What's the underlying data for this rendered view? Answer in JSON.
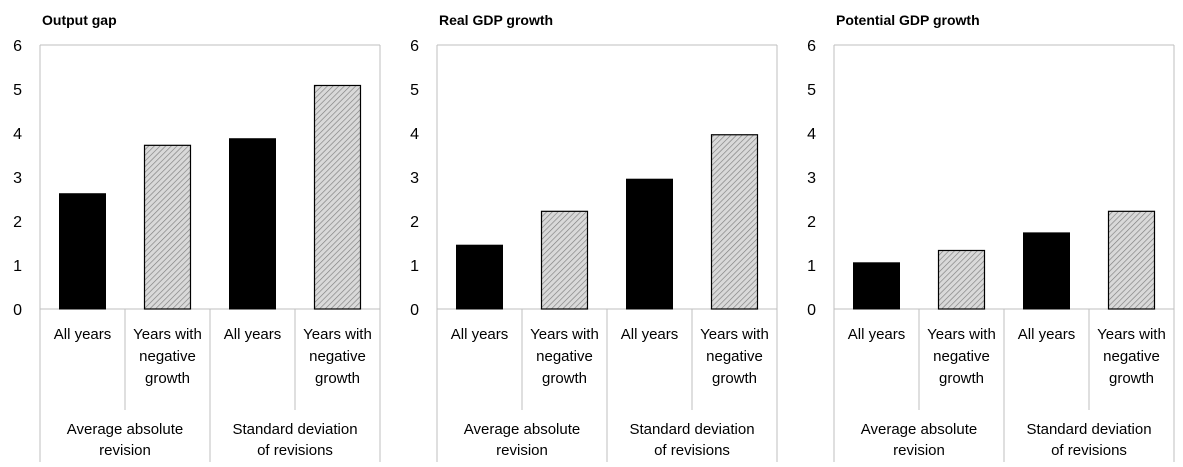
{
  "colors": {
    "solid": "#000000",
    "hatch_fill": "#d9d9d9",
    "hatch_line": "#7f7f7f",
    "axis": "#bfbfbf"
  },
  "chart_data": [
    {
      "type": "bar",
      "title": "Output gap",
      "ylim": [
        0,
        6
      ],
      "yticks": [
        "0",
        "1",
        "2",
        "3",
        "4",
        "5",
        "6"
      ],
      "categories": [
        "All years",
        "Years with negative growth",
        "All years",
        "Years with negative growth"
      ],
      "category_lines": [
        [
          "All years"
        ],
        [
          "Years with",
          "negative",
          "growth"
        ],
        [
          "All years"
        ],
        [
          "Years with",
          "negative",
          "growth"
        ]
      ],
      "groups": [
        {
          "label": "Average absolute revision",
          "lines": [
            "Average absolute",
            "revision"
          ]
        },
        {
          "label": "Standard deviation of revisions",
          "lines": [
            "Standard deviation",
            "of revisions"
          ]
        }
      ],
      "styles": [
        "solid",
        "hatched",
        "solid",
        "hatched"
      ],
      "values": [
        2.62,
        3.72,
        3.87,
        5.08
      ]
    },
    {
      "type": "bar",
      "title": "Real GDP growth",
      "ylim": [
        0,
        6
      ],
      "yticks": [
        "0",
        "1",
        "2",
        "3",
        "4",
        "5",
        "6"
      ],
      "categories": [
        "All years",
        "Years with negative growth",
        "All years",
        "Years with negative growth"
      ],
      "category_lines": [
        [
          "All years"
        ],
        [
          "Years with",
          "negative",
          "growth"
        ],
        [
          "All years"
        ],
        [
          "Years with",
          "negative",
          "growth"
        ]
      ],
      "groups": [
        {
          "label": "Average absolute revision",
          "lines": [
            "Average absolute",
            "revision"
          ]
        },
        {
          "label": "Standard deviation of revisions",
          "lines": [
            "Standard deviation",
            "of revisions"
          ]
        }
      ],
      "styles": [
        "solid",
        "hatched",
        "solid",
        "hatched"
      ],
      "values": [
        1.45,
        2.22,
        2.95,
        3.96
      ]
    },
    {
      "type": "bar",
      "title": "Potential GDP growth",
      "ylim": [
        0,
        6
      ],
      "yticks": [
        "0",
        "1",
        "2",
        "3",
        "4",
        "5",
        "6"
      ],
      "categories": [
        "All years",
        "Years with negative growth",
        "All years",
        "Years with negative growth"
      ],
      "category_lines": [
        [
          "All years"
        ],
        [
          "Years with",
          "negative",
          "growth"
        ],
        [
          "All years"
        ],
        [
          "Years with",
          "negative",
          "growth"
        ]
      ],
      "groups": [
        {
          "label": "Average absolute revision",
          "lines": [
            "Average absolute",
            "revision"
          ]
        },
        {
          "label": "Standard deviation of revisions",
          "lines": [
            "Standard deviation",
            "of revisions"
          ]
        }
      ],
      "styles": [
        "solid",
        "hatched",
        "solid",
        "hatched"
      ],
      "values": [
        1.05,
        1.33,
        1.73,
        2.22
      ]
    }
  ]
}
